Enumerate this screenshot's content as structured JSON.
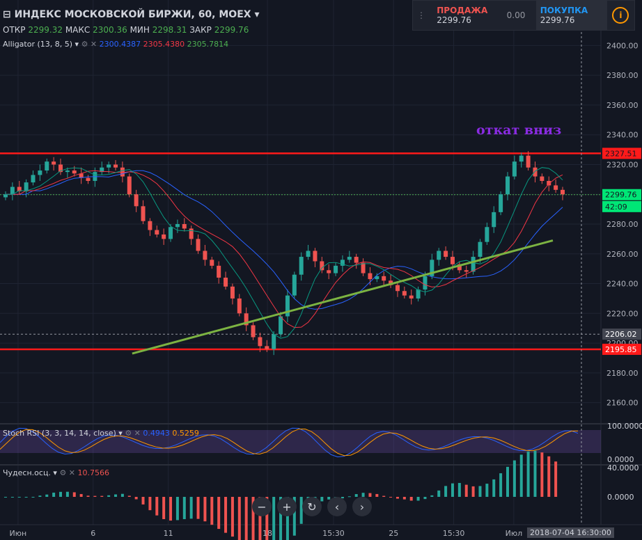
{
  "header": {
    "title": "ИНДЕКС МОСКОВСКОЙ БИРЖИ, 60, MOEX",
    "ohlc": [
      {
        "label": "ОТКР",
        "value": "2299.32"
      },
      {
        "label": "МАКС",
        "value": "2300.36"
      },
      {
        "label": "МИН",
        "value": "2298.31"
      },
      {
        "label": "ЗАКР",
        "value": "2299.76"
      }
    ],
    "alligator": {
      "label": "Alligator (13, 8, 5)",
      "values": [
        "2300.4387",
        "2305.4380",
        "2305.7814"
      ]
    }
  },
  "trade": {
    "sell_label": "ПРОДАЖА",
    "sell_value": "2299.76",
    "spread": "0.00",
    "buy_label": "ПОКУПКА",
    "buy_value": "2299.76"
  },
  "annotation": "откат вниз",
  "stoch": {
    "label": "Stoch RSI (3, 3, 14, 14, close)",
    "k": "0.4943",
    "d": "0.5259",
    "ticks": [
      "100.0000",
      "0.0000"
    ]
  },
  "ao": {
    "label": "Чудесн.осц.",
    "value": "10.7566",
    "ticks": [
      "40.0000",
      "0.0000"
    ]
  },
  "time_label": "2018-07-04 16:30:00",
  "colors": {
    "up": "#26a69a",
    "down": "#ef5350",
    "jaw": "#2962ff",
    "teeth": "#f23645",
    "lips": "#089981",
    "level": "#ff1a1a",
    "trend": "#7cb342"
  },
  "chart_data": {
    "type": "candlestick",
    "ylim": [
      2150,
      2410
    ],
    "y_ticks": [
      "2400.00",
      "2380.00",
      "2360.00",
      "2340.00",
      "2320.00",
      "2300.00",
      "2280.00",
      "2260.00",
      "2240.00",
      "2220.00",
      "2200.00",
      "2180.00",
      "2160.00"
    ],
    "x_ticks": [
      "Июн",
      "6",
      "11",
      "18",
      "15:30",
      "25",
      "15:30",
      "Июл"
    ],
    "price_labels": {
      "resistance": "2327.51",
      "last": "2299.76",
      "countdown": "42:09",
      "crosshair": "2206.02",
      "support": "2195.85"
    },
    "levels": {
      "resistance": 2327.51,
      "support": 2195.85,
      "last": 2299.76,
      "crosshair": 2206.02
    },
    "trendline": [
      [
        22,
        2193
      ],
      [
        92,
        2269
      ]
    ],
    "close_path": [
      2300,
      2305,
      2302,
      2308,
      2313,
      2316,
      2322,
      2320,
      2315,
      2316,
      2314,
      2311,
      2309,
      2315,
      2318,
      2320,
      2318,
      2312,
      2300,
      2292,
      2282,
      2276,
      2273,
      2270,
      2278,
      2280,
      2277,
      2270,
      2262,
      2256,
      2252,
      2244,
      2238,
      2230,
      2220,
      2212,
      2204,
      2198,
      2196,
      2206,
      2218,
      2232,
      2246,
      2258,
      2262,
      2255,
      2249,
      2247,
      2252,
      2256,
      2258,
      2254,
      2247,
      2243,
      2245,
      2242,
      2239,
      2235,
      2232,
      2230,
      2236,
      2245,
      2256,
      2262,
      2258,
      2253,
      2249,
      2248,
      2258,
      2268,
      2278,
      2288,
      2300,
      2312,
      2322,
      2326,
      2318,
      2312,
      2309,
      2306,
      2303,
      2300
    ]
  }
}
